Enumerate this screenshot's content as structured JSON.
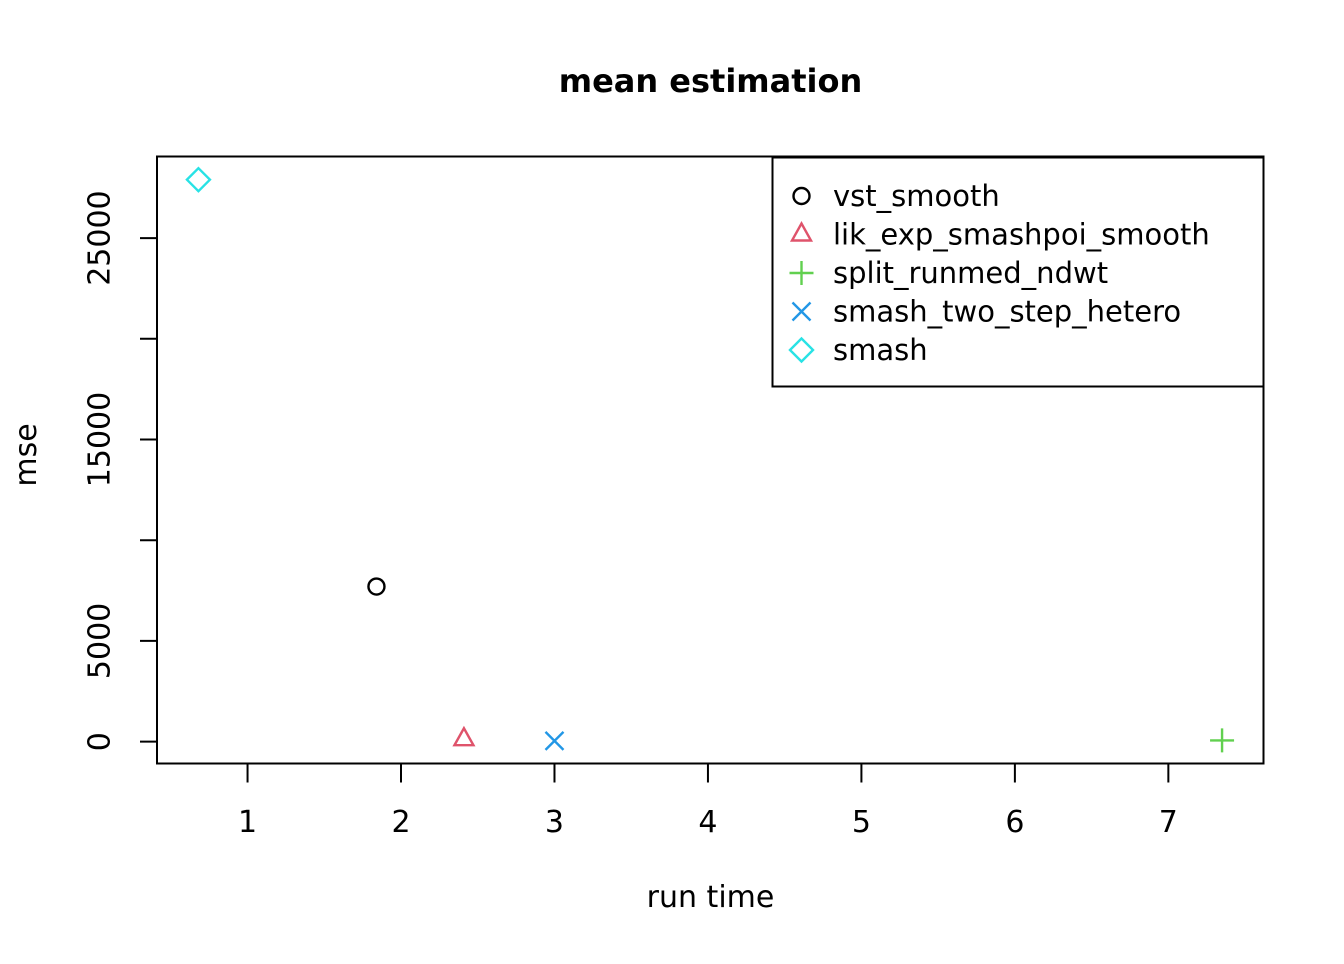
{
  "chart_data": {
    "type": "scatter",
    "title": "mean estimation",
    "xlabel": "run time",
    "ylabel": "mse",
    "xlim": [
      0.41,
      7.62
    ],
    "ylim": [
      -1085,
      29050
    ],
    "x_ticks": [
      1,
      2,
      3,
      4,
      5,
      6,
      7
    ],
    "y_ticks": [
      0,
      5000,
      10000,
      15000,
      20000,
      25000
    ],
    "y_tick_labels": [
      "0",
      "5000",
      "",
      "15000",
      "",
      "25000"
    ],
    "grid": false,
    "legend_position": "top-right",
    "axis_color": "#000000",
    "series": [
      {
        "name": "vst_smooth",
        "marker": "circle",
        "color": "#000000",
        "points": [
          [
            1.84,
            7700
          ]
        ]
      },
      {
        "name": "lik_exp_smashpoi_smooth",
        "marker": "triangle",
        "color": "#DF536B",
        "points": [
          [
            2.41,
            120
          ]
        ]
      },
      {
        "name": "split_runmed_ndwt",
        "marker": "plus",
        "color": "#61D04F",
        "points": [
          [
            7.35,
            60
          ]
        ]
      },
      {
        "name": "smash_two_step_hetero",
        "marker": "x",
        "color": "#2297E6",
        "points": [
          [
            3.0,
            40
          ]
        ]
      },
      {
        "name": "smash",
        "marker": "diamond",
        "color": "#28E2E5",
        "points": [
          [
            0.68,
            27900
          ]
        ]
      }
    ]
  }
}
